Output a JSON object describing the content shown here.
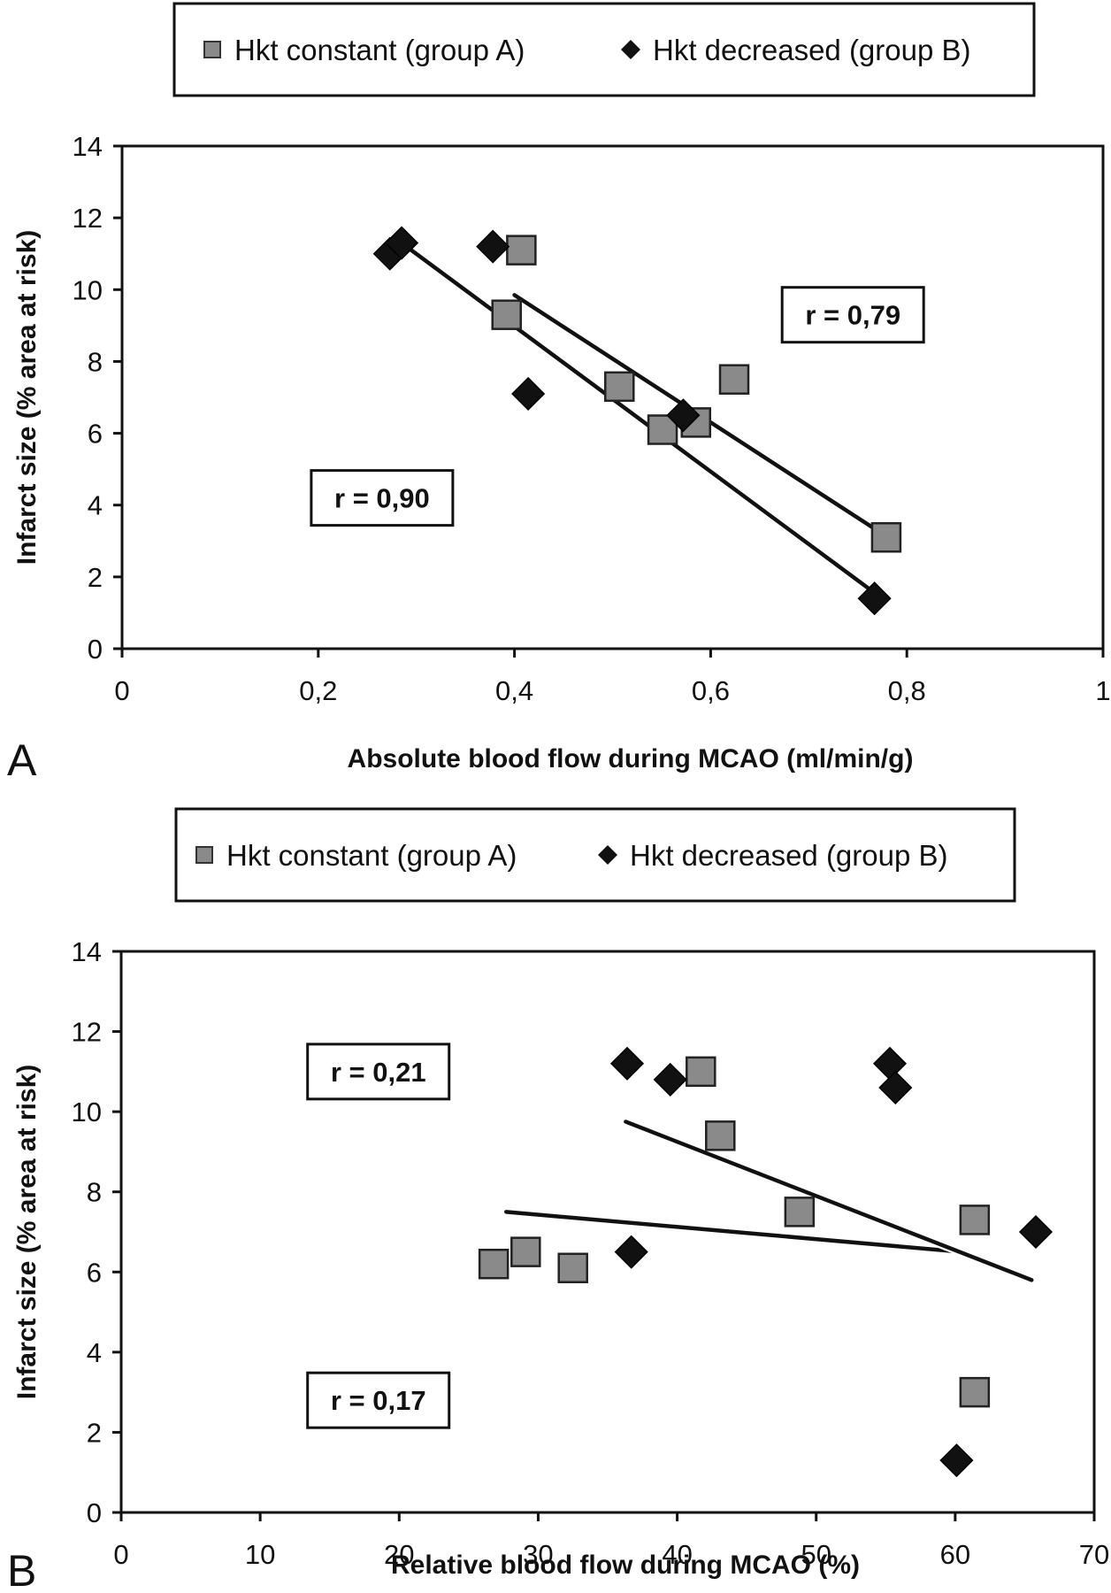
{
  "chart_data": [
    {
      "type": "scatter",
      "panel_label": "A",
      "title": "",
      "xlabel": "Absolute blood flow during MCAO (ml/min/g)",
      "ylabel": "Infarct size (% area at risk)",
      "xlim": [
        0,
        1
      ],
      "ylim": [
        0,
        14
      ],
      "x_ticks": [
        0,
        0.2,
        0.4,
        0.6,
        0.8,
        1
      ],
      "x_tick_labels": [
        "0",
        "0,2",
        "0,4",
        "0,6",
        "0,8",
        "1"
      ],
      "y_ticks": [
        0,
        2,
        4,
        6,
        8,
        10,
        12,
        14
      ],
      "y_tick_labels": [
        "0",
        "2",
        "4",
        "6",
        "8",
        "10",
        "12",
        "14"
      ],
      "grid": false,
      "legend": {
        "placement": "top",
        "entries": [
          "Hkt constant (group A)",
          "Hkt decreased (group B)"
        ]
      },
      "series": [
        {
          "name": "Hkt constant (group A)",
          "marker": "square",
          "color": "#8a8a8a",
          "points": [
            [
              0.407,
              11.1
            ],
            [
              0.392,
              9.3
            ],
            [
              0.507,
              7.3
            ],
            [
              0.551,
              6.1
            ],
            [
              0.585,
              6.3
            ],
            [
              0.624,
              7.5
            ],
            [
              0.779,
              3.1
            ]
          ],
          "trendline": [
            [
              0.4,
              9.85
            ],
            [
              0.775,
              3.2
            ]
          ]
        },
        {
          "name": "Hkt decreased (group B)",
          "marker": "diamond",
          "color": "#111111",
          "points": [
            [
              0.273,
              11.0
            ],
            [
              0.285,
              11.3
            ],
            [
              0.378,
              11.2
            ],
            [
              0.414,
              7.1
            ],
            [
              0.572,
              6.5
            ],
            [
              0.767,
              1.4
            ]
          ],
          "trendline": [
            [
              0.285,
              11.3
            ],
            [
              0.76,
              1.7
            ]
          ]
        }
      ],
      "annotations": [
        {
          "text": "r = 0,79",
          "x": 0.745,
          "y": 9.3
        },
        {
          "text": "r = 0,90",
          "x": 0.265,
          "y": 4.2
        }
      ]
    },
    {
      "type": "scatter",
      "panel_label": "B",
      "title": "",
      "xlabel": "Relative blood flow during MCAO (%)",
      "ylabel": "Infarct size (% area at risk)",
      "xlim": [
        0,
        70
      ],
      "ylim": [
        0,
        14
      ],
      "x_ticks": [
        0,
        10,
        20,
        30,
        40,
        50,
        60,
        70
      ],
      "x_tick_labels": [
        "0",
        "10",
        "20",
        "30",
        "40",
        "50",
        "60",
        "70"
      ],
      "y_ticks": [
        0,
        2,
        4,
        6,
        8,
        10,
        12,
        14
      ],
      "y_tick_labels": [
        "0",
        "2",
        "4",
        "6",
        "8",
        "10",
        "12",
        "14"
      ],
      "grid": false,
      "legend": {
        "placement": "top",
        "entries": [
          "Hkt constant (group A)",
          "Hkt decreased (group B)"
        ]
      },
      "series": [
        {
          "name": "Hkt constant (group A)",
          "marker": "square",
          "color": "#8a8a8a",
          "points": [
            [
              26.8,
              6.2
            ],
            [
              29.1,
              6.5
            ],
            [
              32.5,
              6.1
            ],
            [
              41.7,
              11.0
            ],
            [
              43.1,
              9.4
            ],
            [
              48.8,
              7.5
            ],
            [
              61.4,
              7.3
            ],
            [
              61.4,
              3.0
            ]
          ],
          "trendline": [
            [
              27.7,
              7.5
            ],
            [
              60.5,
              6.5
            ]
          ]
        },
        {
          "name": "Hkt decreased (group B)",
          "marker": "diamond",
          "color": "#111111",
          "points": [
            [
              36.4,
              11.2
            ],
            [
              39.5,
              10.8
            ],
            [
              36.7,
              6.5
            ],
            [
              55.3,
              11.2
            ],
            [
              55.7,
              10.6
            ],
            [
              65.8,
              7.0
            ],
            [
              60.1,
              1.3
            ]
          ],
          "trendline": [
            [
              36.3,
              9.75
            ],
            [
              65.5,
              5.8
            ]
          ]
        }
      ],
      "annotations": [
        {
          "text": "r = 0,21",
          "x": 18.5,
          "y": 11.0
        },
        {
          "text": "r = 0,17",
          "x": 18.5,
          "y": 2.8
        }
      ]
    }
  ]
}
